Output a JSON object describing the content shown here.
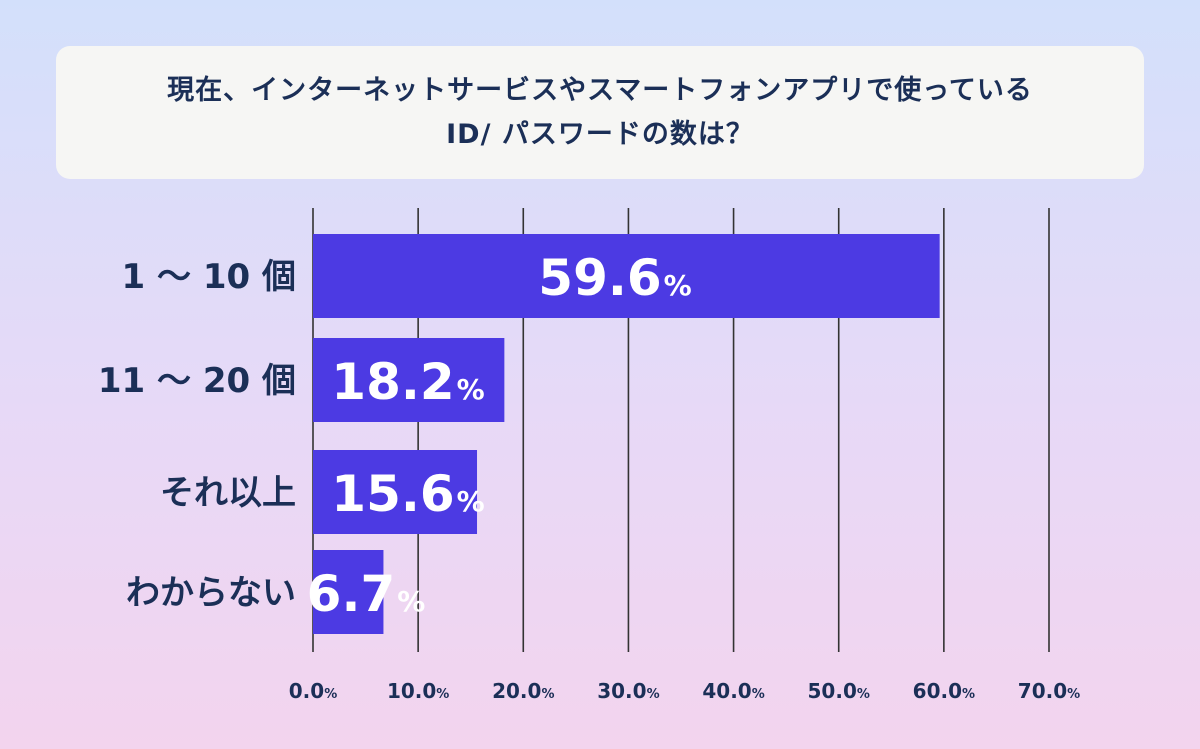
{
  "chart_data": {
    "type": "bar",
    "orientation": "horizontal",
    "title": [
      "現在、インターネットサービスやスマートフォンアプリで使っている",
      "ID/ パスワードの数は？"
    ],
    "categories": [
      "1 〜 10 個",
      "11 〜 20 個",
      "それ以上",
      "わからない"
    ],
    "series": [
      {
        "values": [
          59.6,
          18.2,
          15.6,
          6.7
        ]
      }
    ],
    "value_labels": [
      "59.6",
      "18.2",
      "15.6",
      "6.7"
    ],
    "unit_symbol": "%",
    "x_ticks": [
      "0.0",
      "10.0",
      "20.0",
      "30.0",
      "40.0",
      "50.0",
      "60.0",
      "70.0"
    ],
    "xlim": [
      0,
      70
    ],
    "grid": true,
    "bar_color": "#4c3ae3",
    "label_color": "#1b2f57",
    "gridline_color": "#333333"
  }
}
